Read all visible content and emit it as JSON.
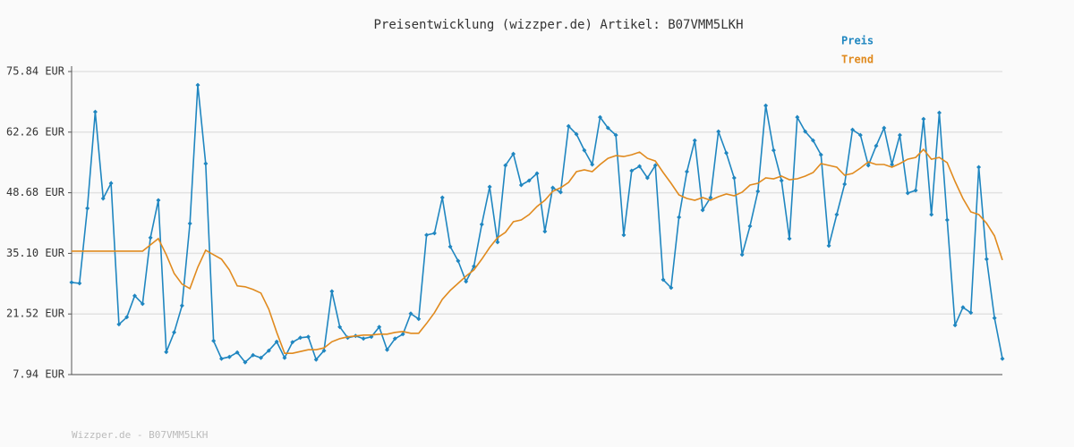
{
  "chart_data": {
    "type": "line",
    "title": "Preisentwicklung (wizzper.de) Artikel: B07VMM5LKH",
    "footer": "Wizzper.de - B07VMM5LKH",
    "ylim": [
      7.94,
      75.84
    ],
    "yticks": [
      {
        "value": 7.94,
        "label": "7.94 EUR"
      },
      {
        "value": 21.52,
        "label": "21.52 EUR"
      },
      {
        "value": 35.1,
        "label": "35.10 EUR"
      },
      {
        "value": 48.68,
        "label": "48.68 EUR"
      },
      {
        "value": 62.26,
        "label": "62.26 EUR"
      },
      {
        "value": 75.84,
        "label": "75.84 EUR"
      }
    ],
    "grid": true,
    "legend": "top-right",
    "series": [
      {
        "name": "Preis",
        "color": "#1f86c0",
        "markers": true,
        "values": [
          28.6,
          28.4,
          45.2,
          66.8,
          47.4,
          50.8,
          19.2,
          20.8,
          25.6,
          23.8,
          38.6,
          47.0,
          13.0,
          17.4,
          23.4,
          41.8,
          72.8,
          55.2,
          15.5,
          11.5,
          11.9,
          12.9,
          10.7,
          12.3,
          11.7,
          13.3,
          15.3,
          11.7,
          15.2,
          16.2,
          16.4,
          11.3,
          13.3,
          26.6,
          18.6,
          16.2,
          16.6,
          16.0,
          16.4,
          18.6,
          13.5,
          16.0,
          17.0,
          21.6,
          20.4,
          39.2,
          39.6,
          47.6,
          36.6,
          33.4,
          28.8,
          32.2,
          41.6,
          50.0,
          37.6,
          54.8,
          57.4,
          50.4,
          51.4,
          53.0,
          40.0,
          49.8,
          48.8,
          63.6,
          61.8,
          58.2,
          55.0,
          65.6,
          63.2,
          61.6,
          39.2,
          53.6,
          54.6,
          52.0,
          54.8,
          29.2,
          27.4,
          43.2,
          53.4,
          60.4,
          44.8,
          47.6,
          62.4,
          57.6,
          52.0,
          34.8,
          41.2,
          49.0,
          68.2,
          58.2,
          51.4,
          38.4,
          65.6,
          62.4,
          60.4,
          57.2,
          36.8,
          43.8,
          50.6,
          62.8,
          61.6,
          54.8,
          59.2,
          63.2,
          55.0,
          61.6,
          48.6,
          49.2,
          65.2,
          43.8,
          66.6,
          42.6,
          19.0,
          23.0,
          21.8,
          54.4,
          33.8,
          20.6,
          11.5
        ]
      },
      {
        "name": "Trend",
        "color": "#e08a1e",
        "markers": false,
        "values": [
          35.6,
          35.6,
          35.6,
          35.6,
          35.6,
          35.6,
          35.6,
          35.6,
          35.6,
          35.6,
          37.0,
          38.4,
          34.8,
          30.6,
          28.2,
          27.2,
          32.0,
          35.8,
          34.8,
          33.8,
          31.4,
          27.8,
          27.6,
          27.0,
          26.2,
          22.6,
          17.4,
          12.7,
          12.7,
          13.1,
          13.5,
          13.5,
          13.9,
          15.3,
          16.0,
          16.4,
          16.6,
          16.8,
          16.8,
          17.0,
          17.0,
          17.4,
          17.6,
          17.2,
          17.2,
          19.4,
          21.8,
          24.8,
          26.8,
          28.4,
          30.0,
          31.4,
          33.8,
          36.4,
          38.6,
          39.8,
          42.2,
          42.6,
          43.8,
          45.6,
          47.0,
          49.0,
          49.8,
          51.0,
          53.4,
          53.8,
          53.4,
          55.0,
          56.4,
          57.0,
          56.8,
          57.2,
          57.8,
          56.4,
          55.8,
          53.2,
          50.8,
          48.2,
          47.4,
          47.0,
          47.6,
          47.0,
          47.8,
          48.4,
          48.0,
          48.8,
          50.4,
          50.8,
          52.0,
          51.8,
          52.4,
          51.6,
          51.8,
          52.4,
          53.2,
          55.2,
          54.8,
          54.4,
          52.6,
          53.0,
          54.2,
          55.6,
          55.0,
          55.0,
          54.4,
          55.2,
          56.2,
          56.6,
          58.4,
          56.2,
          56.6,
          55.4,
          51.2,
          47.4,
          44.4,
          43.8,
          41.8,
          39.0,
          33.6
        ]
      }
    ]
  }
}
